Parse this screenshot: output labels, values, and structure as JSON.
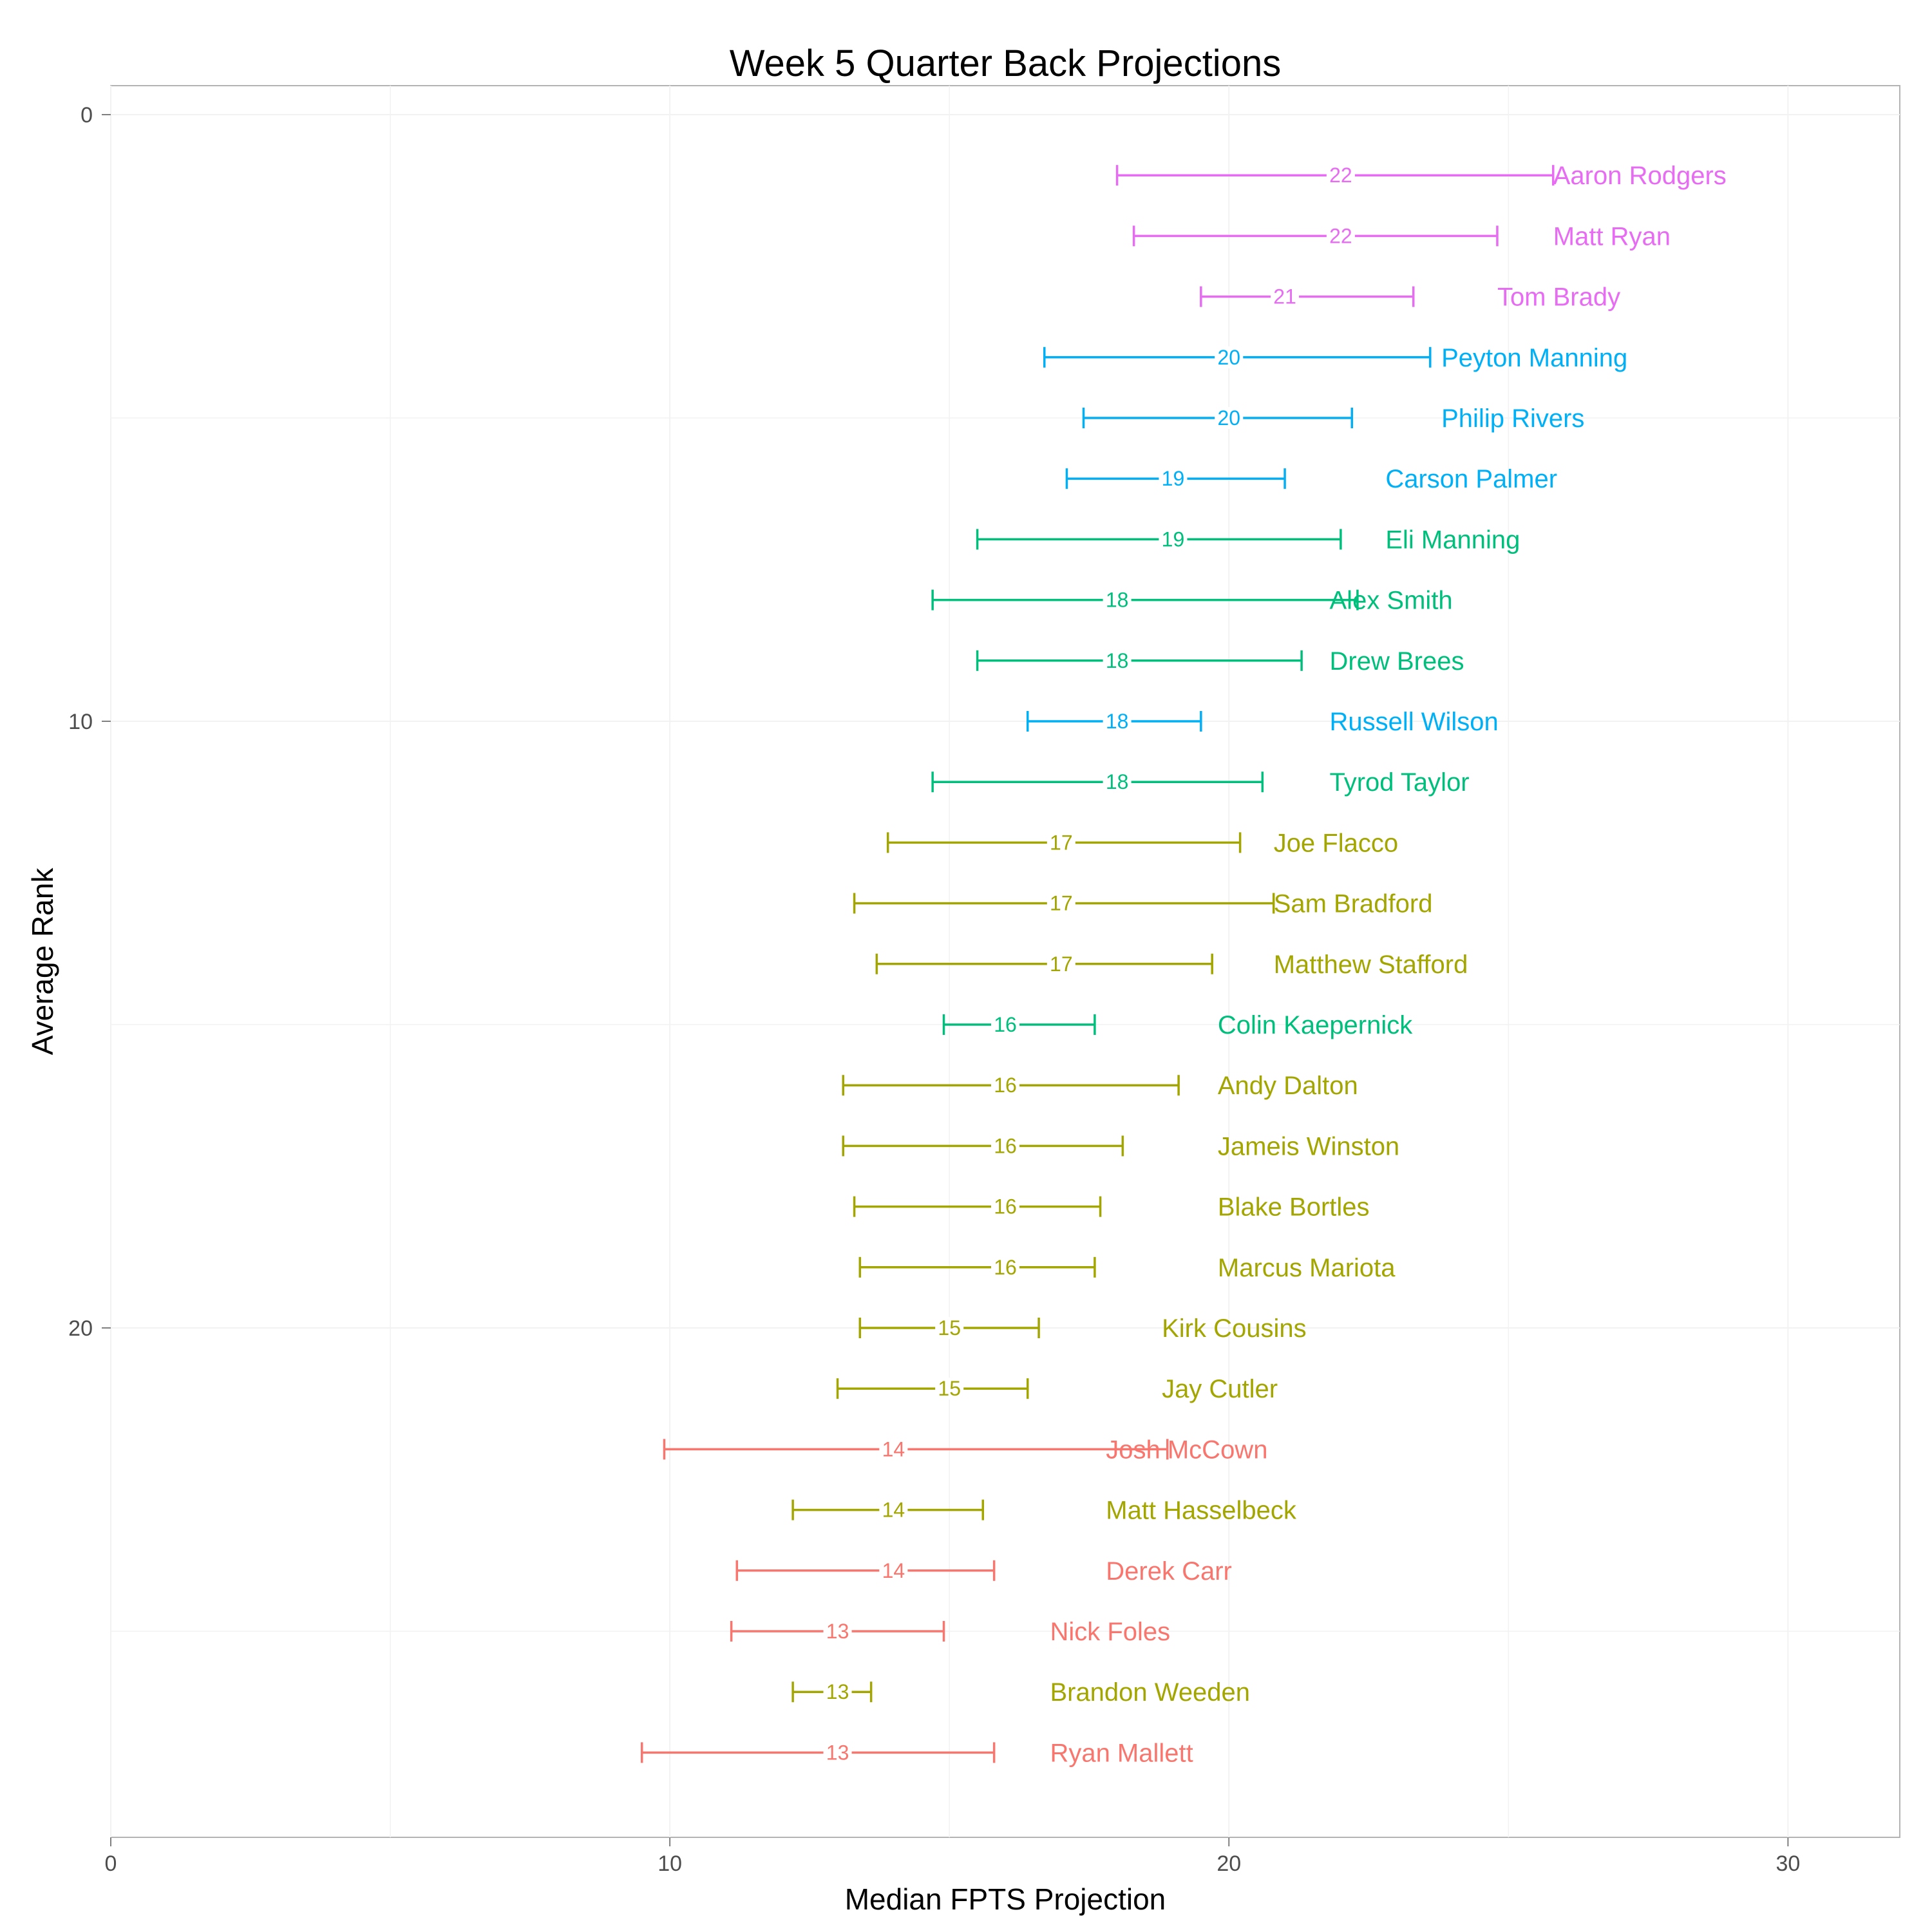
{
  "chart_data": {
    "type": "errorbar",
    "title": "Week 5 Quarter Back Projections",
    "xlabel": "Median FPTS Projection",
    "ylabel": "Average Rank",
    "xlim": [
      0,
      32
    ],
    "ylim": [
      0,
      28.3
    ],
    "y_reversed": true,
    "x_ticks": [
      "0",
      "10",
      "20",
      "30"
    ],
    "y_ticks": [
      "0",
      "10",
      "20"
    ],
    "grid": true,
    "legend": "none",
    "tier_colors": {
      "tier1": "#e76bf3",
      "tier2": "#00b0f6",
      "tier3": "#00bf7d",
      "tier4": "#a3a500",
      "tier5": "#f8766d"
    },
    "points": [
      {
        "name": "Aaron Rodgers",
        "rank": 1,
        "low": 18.0,
        "median": 22,
        "high": 25.8,
        "tier": "tier1"
      },
      {
        "name": "Matt Ryan",
        "rank": 2,
        "low": 18.3,
        "median": 22,
        "high": 24.8,
        "tier": "tier1"
      },
      {
        "name": "Tom Brady",
        "rank": 3,
        "low": 19.5,
        "median": 21,
        "high": 23.3,
        "tier": "tier1"
      },
      {
        "name": "Peyton Manning",
        "rank": 4,
        "low": 16.7,
        "median": 20,
        "high": 23.6,
        "tier": "tier2"
      },
      {
        "name": "Philip Rivers",
        "rank": 5,
        "low": 17.4,
        "median": 20,
        "high": 22.2,
        "tier": "tier2"
      },
      {
        "name": "Carson Palmer",
        "rank": 6,
        "low": 17.1,
        "median": 19,
        "high": 21.0,
        "tier": "tier2"
      },
      {
        "name": "Eli Manning",
        "rank": 7,
        "low": 15.5,
        "median": 19,
        "high": 22.0,
        "tier": "tier3"
      },
      {
        "name": "Alex Smith",
        "rank": 8,
        "low": 14.7,
        "median": 18,
        "high": 22.3,
        "tier": "tier3"
      },
      {
        "name": "Drew Brees",
        "rank": 9,
        "low": 15.5,
        "median": 18,
        "high": 21.3,
        "tier": "tier3"
      },
      {
        "name": "Russell Wilson",
        "rank": 10,
        "low": 16.4,
        "median": 18,
        "high": 19.5,
        "tier": "tier2"
      },
      {
        "name": "Tyrod Taylor",
        "rank": 11,
        "low": 14.7,
        "median": 18,
        "high": 20.6,
        "tier": "tier3"
      },
      {
        "name": "Joe Flacco",
        "rank": 12,
        "low": 13.9,
        "median": 17,
        "high": 20.2,
        "tier": "tier4"
      },
      {
        "name": "Sam Bradford",
        "rank": 13,
        "low": 13.3,
        "median": 17,
        "high": 20.8,
        "tier": "tier4"
      },
      {
        "name": "Matthew Stafford",
        "rank": 14,
        "low": 13.7,
        "median": 17,
        "high": 19.7,
        "tier": "tier4"
      },
      {
        "name": "Colin Kaepernick",
        "rank": 15,
        "low": 14.9,
        "median": 16,
        "high": 17.6,
        "tier": "tier3"
      },
      {
        "name": "Andy Dalton",
        "rank": 16,
        "low": 13.1,
        "median": 16,
        "high": 19.1,
        "tier": "tier4"
      },
      {
        "name": "Jameis Winston",
        "rank": 17,
        "low": 13.1,
        "median": 16,
        "high": 18.1,
        "tier": "tier4"
      },
      {
        "name": "Blake Bortles",
        "rank": 18,
        "low": 13.3,
        "median": 16,
        "high": 17.7,
        "tier": "tier4"
      },
      {
        "name": "Marcus Mariota",
        "rank": 19,
        "low": 13.4,
        "median": 16,
        "high": 17.6,
        "tier": "tier4"
      },
      {
        "name": "Kirk Cousins",
        "rank": 20,
        "low": 13.4,
        "median": 15,
        "high": 16.6,
        "tier": "tier4"
      },
      {
        "name": "Jay Cutler",
        "rank": 21,
        "low": 13.0,
        "median": 15,
        "high": 16.4,
        "tier": "tier4"
      },
      {
        "name": "Josh McCown",
        "rank": 22,
        "low": 9.9,
        "median": 14,
        "high": 18.9,
        "tier": "tier5"
      },
      {
        "name": "Matt Hasselbeck",
        "rank": 23,
        "low": 12.2,
        "median": 14,
        "high": 15.6,
        "tier": "tier4"
      },
      {
        "name": "Derek Carr",
        "rank": 24,
        "low": 11.2,
        "median": 14,
        "high": 15.8,
        "tier": "tier5"
      },
      {
        "name": "Nick Foles",
        "rank": 25,
        "low": 11.1,
        "median": 13,
        "high": 14.9,
        "tier": "tier5"
      },
      {
        "name": "Brandon Weeden",
        "rank": 26,
        "low": 12.2,
        "median": 13,
        "high": 13.6,
        "tier": "tier4"
      },
      {
        "name": "Ryan Mallett",
        "rank": 27,
        "low": 9.5,
        "median": 13,
        "high": 15.8,
        "tier": "tier5"
      }
    ]
  }
}
